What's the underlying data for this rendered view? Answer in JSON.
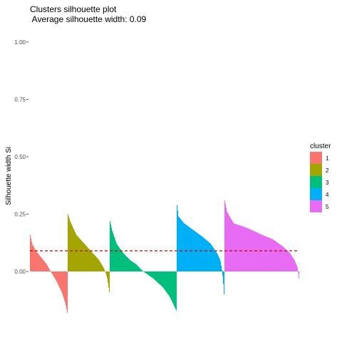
{
  "chart_data": {
    "type": "bar",
    "title": "Clusters silhouette plot",
    "subtitle": " Average silhouette width: 0.09",
    "xlabel": "",
    "ylabel": "Silhouette width Si",
    "ylim": [
      -0.2,
      1.0
    ],
    "yticks": [
      {
        "value": 0.0,
        "label": "0.00"
      },
      {
        "value": 0.25,
        "label": "0.25"
      },
      {
        "value": 0.5,
        "label": "0.50"
      },
      {
        "value": 0.75,
        "label": "0.75"
      },
      {
        "value": 1.0,
        "label": "1.00"
      }
    ],
    "grid": false,
    "legend": {
      "title": "cluster",
      "position": "right",
      "items": [
        {
          "label": "1",
          "color": "#F8766D"
        },
        {
          "label": "2",
          "color": "#A3A500"
        },
        {
          "label": "3",
          "color": "#00BF7D"
        },
        {
          "label": "4",
          "color": "#00B0F6"
        },
        {
          "label": "5",
          "color": "#E76BF3"
        }
      ]
    },
    "average_line": {
      "value": 0.09,
      "color": "#cc0000",
      "style": "dashed"
    },
    "series": [
      {
        "name": "1",
        "color": "#F8766D",
        "profile": [
          [
            0,
            0.16
          ],
          [
            0.05,
            0.12
          ],
          [
            0.15,
            0.09
          ],
          [
            0.3,
            0.06
          ],
          [
            0.45,
            0.03
          ],
          [
            0.55,
            0.0
          ],
          [
            0.7,
            -0.04
          ],
          [
            0.85,
            -0.09
          ],
          [
            0.95,
            -0.14
          ],
          [
            1.0,
            -0.18
          ]
        ]
      },
      {
        "name": "2",
        "color": "#A3A500",
        "profile": [
          [
            0,
            0.25
          ],
          [
            0.05,
            0.22
          ],
          [
            0.2,
            0.16
          ],
          [
            0.4,
            0.12
          ],
          [
            0.6,
            0.08
          ],
          [
            0.75,
            0.05
          ],
          [
            0.85,
            0.02
          ],
          [
            0.9,
            0.0
          ],
          [
            0.95,
            -0.03
          ],
          [
            1.0,
            -0.09
          ]
        ]
      },
      {
        "name": "3",
        "color": "#00BF7D",
        "profile": [
          [
            0,
            0.22
          ],
          [
            0.03,
            0.18
          ],
          [
            0.1,
            0.12
          ],
          [
            0.2,
            0.08
          ],
          [
            0.3,
            0.05
          ],
          [
            0.4,
            0.03
          ],
          [
            0.5,
            0.0
          ],
          [
            0.65,
            -0.03
          ],
          [
            0.8,
            -0.07
          ],
          [
            0.9,
            -0.11
          ],
          [
            1.0,
            -0.17
          ]
        ]
      },
      {
        "name": "4",
        "color": "#00B0F6",
        "profile": [
          [
            0,
            0.29
          ],
          [
            0.03,
            0.24
          ],
          [
            0.15,
            0.21
          ],
          [
            0.35,
            0.18
          ],
          [
            0.55,
            0.15
          ],
          [
            0.72,
            0.12
          ],
          [
            0.85,
            0.08
          ],
          [
            0.92,
            0.05
          ],
          [
            0.96,
            0.0
          ],
          [
            0.98,
            -0.04
          ],
          [
            1.0,
            -0.1
          ]
        ]
      },
      {
        "name": "5",
        "color": "#E76BF3",
        "profile": [
          [
            0,
            0.31
          ],
          [
            0.03,
            0.26
          ],
          [
            0.12,
            0.21
          ],
          [
            0.3,
            0.19
          ],
          [
            0.5,
            0.16
          ],
          [
            0.65,
            0.14
          ],
          [
            0.78,
            0.11
          ],
          [
            0.88,
            0.08
          ],
          [
            0.94,
            0.05
          ],
          [
            0.98,
            0.02
          ],
          [
            1.0,
            -0.03
          ]
        ]
      }
    ]
  }
}
